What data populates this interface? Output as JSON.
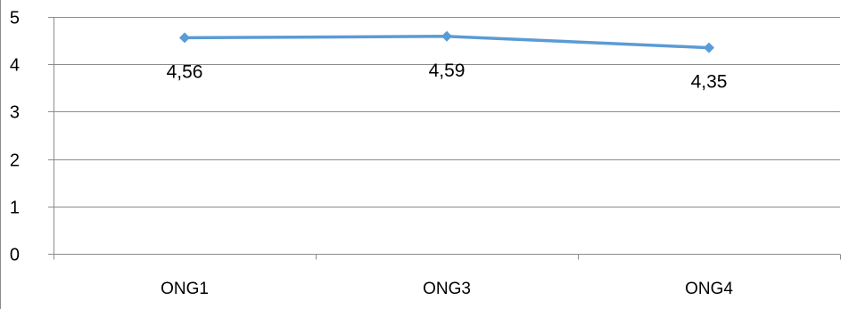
{
  "chart_data": {
    "type": "line",
    "categories": [
      "ONG1",
      "ONG3",
      "ONG4"
    ],
    "series": [
      {
        "values": [
          4.56,
          4.59,
          4.35
        ],
        "data_labels": [
          "4,56",
          "4,59",
          "4,35"
        ]
      }
    ],
    "ylim": [
      0,
      5
    ],
    "yticks": [
      0,
      1,
      2,
      3,
      4,
      5
    ],
    "ytick_labels": [
      "0",
      "1",
      "2",
      "3",
      "4",
      "5"
    ],
    "grid": true,
    "legend": "none",
    "line_color": "#5b9bd5",
    "marker": "diamond"
  }
}
